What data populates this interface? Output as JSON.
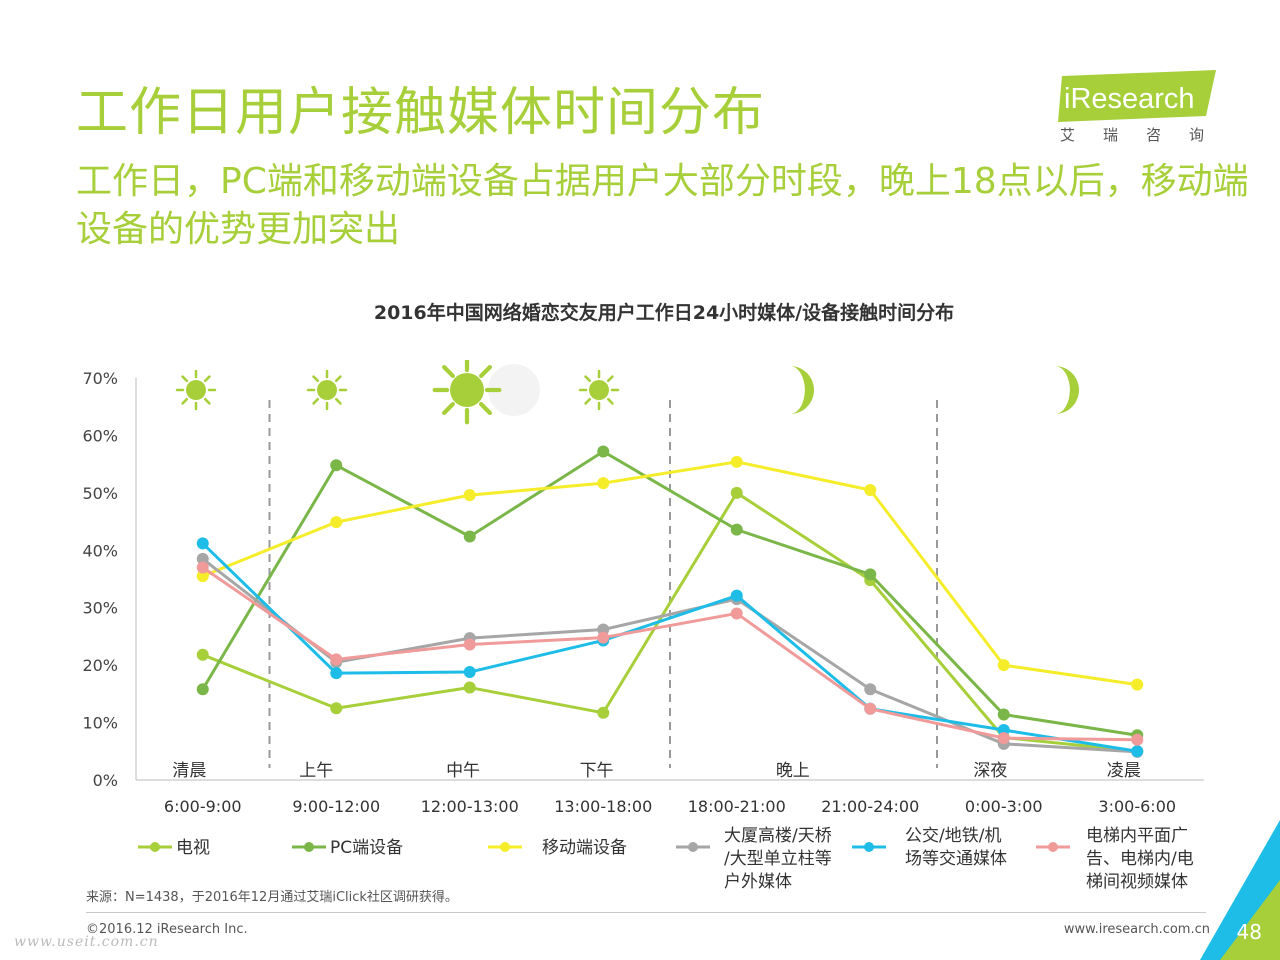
{
  "header": {
    "title": "工作日用户接触媒体时间分布",
    "subtitle": "工作日，PC端和移动端设备占据用户大部分时段，晚上18点以后，移动端设备的优势更加突出",
    "logo_text": "iResearch",
    "logo_cn": "艾瑞咨询"
  },
  "colors": {
    "accent": "#a6cf3a",
    "tv": "#a6cf3a",
    "pc": "#7ab648",
    "mobile": "#f5ed2a",
    "outdoor": "#a6a6a6",
    "transit": "#1dbde8",
    "elevator": "#f09a9a"
  },
  "chart_data": {
    "type": "line",
    "title": "2016年中国网络婚恋交友用户工作日24小时媒体/设备接触时间分布",
    "categories": [
      "6:00-9:00",
      "9:00-12:00",
      "12:00-13:00",
      "13:00-18:00",
      "18:00-21:00",
      "21:00-24:00",
      "0:00-3:00",
      "3:00-6:00"
    ],
    "period_labels": [
      "清晨",
      "上午",
      "中午",
      "下午",
      "晚上",
      "深夜",
      "凌晨"
    ],
    "yticks": [
      "0%",
      "10%",
      "20%",
      "30%",
      "40%",
      "50%",
      "60%",
      "70%"
    ],
    "ylim": [
      0,
      70
    ],
    "series": [
      {
        "name": "电视",
        "color": "#a6cf3a",
        "values": [
          21.8,
          12.5,
          16.1,
          11.7,
          50.0,
          34.8,
          7.4,
          5.0
        ]
      },
      {
        "name": "PC端设备",
        "color": "#7ab648",
        "values": [
          15.8,
          54.8,
          42.4,
          57.2,
          43.6,
          35.8,
          11.4,
          7.8
        ]
      },
      {
        "name": "移动端设备",
        "color": "#f5ed2a",
        "values": [
          35.5,
          44.9,
          49.6,
          51.7,
          55.4,
          50.5,
          20.0,
          16.6
        ]
      },
      {
        "name": "大厦高楼/天桥/大型单立柱等户外媒体",
        "color": "#a6a6a6",
        "values": [
          38.5,
          20.5,
          24.7,
          26.2,
          31.5,
          15.8,
          6.3,
          4.9
        ]
      },
      {
        "name": "公交/地铁/机场等交通媒体",
        "color": "#1dbde8",
        "values": [
          41.2,
          18.6,
          18.8,
          24.3,
          32.1,
          12.4,
          8.7,
          5.0
        ]
      },
      {
        "name": "电梯内平面广告、电梯内/电梯间视频媒体",
        "color": "#f09a9a",
        "values": [
          37.0,
          21.0,
          23.6,
          24.8,
          29.0,
          12.4,
          7.3,
          7.0
        ]
      }
    ],
    "legend": [
      {
        "name": "电视",
        "lines": [
          "电视"
        ]
      },
      {
        "name": "PC端设备",
        "lines": [
          "PC端设备"
        ]
      },
      {
        "name": "移动端设备",
        "lines": [
          "移动端设备"
        ]
      },
      {
        "name": "大厦高楼/天桥/大型单立柱等户外媒体",
        "lines": [
          "大厦高楼/天桥",
          "/大型单立柱等",
          "户外媒体"
        ]
      },
      {
        "name": "公交/地铁/机场等交通媒体",
        "lines": [
          "公交/地铁/机",
          "场等交通媒体"
        ]
      },
      {
        "name": "电梯内平面广告、电梯内/电梯间视频媒体",
        "lines": [
          "电梯内平面广",
          "告、电梯内/电",
          "梯间视频媒体"
        ]
      }
    ],
    "legend_position": "bottom",
    "grid": false
  },
  "footer": {
    "source": "来源：N=1438，于2016年12月通过艾瑞iClick社区调研获得。",
    "copyright": "©2016.12 iResearch Inc.",
    "website": "www.iresearch.com.cn",
    "page_number": "48",
    "watermark": "www.useit.com.cn"
  }
}
